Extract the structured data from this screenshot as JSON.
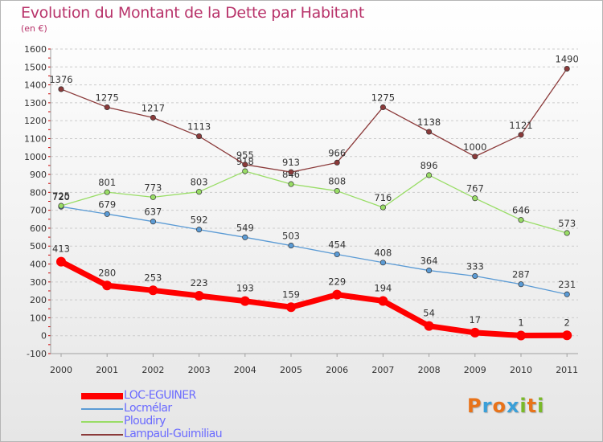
{
  "title": "Evolution du Montant de la Dette par Habitant",
  "subtitle": "(en €)",
  "logo_text": "Proxiti",
  "colors": {
    "title": "#b8336a",
    "axis": "#a0a0a0",
    "grid": "#cccccc",
    "logo": [
      "#e8731a",
      "#3a9fd8",
      "#e8731a",
      "#3a9fd8",
      "#7ab929",
      "#e8731a",
      "#7ab929"
    ]
  },
  "chart_data": {
    "type": "line",
    "title": "Evolution du Montant de la Dette par Habitant",
    "subtitle": "(en €)",
    "xlabel": "",
    "ylabel": "",
    "x": [
      "2000",
      "2001",
      "2002",
      "2003",
      "2004",
      "2005",
      "2006",
      "2007",
      "2008",
      "2009",
      "2010",
      "2011"
    ],
    "ylim": [
      -100,
      1600
    ],
    "yticks": [
      "-100",
      "0",
      "100",
      "200",
      "300",
      "400",
      "500",
      "600",
      "700",
      "800",
      "900",
      "1000",
      "1100",
      "1200",
      "1300",
      "1400",
      "1500",
      "1600"
    ],
    "grid": "horizontal dashed",
    "legend_position": "bottom-left",
    "series": [
      {
        "name": "LOC-EGUINER",
        "color": "#ff0000",
        "legend_text_color": "#6a6aff",
        "emphasis": "thick",
        "values": [
          413,
          280,
          253,
          223,
          193,
          159,
          229,
          194,
          54,
          17,
          1,
          2
        ],
        "labels": [
          "413",
          "280",
          "253",
          "223",
          "193",
          "159",
          "229",
          "194",
          "54",
          "17",
          "1",
          "2"
        ]
      },
      {
        "name": "Locmélar",
        "color": "#5b9bd5",
        "legend_text_color": "#6a6aff",
        "emphasis": "normal",
        "values": [
          720,
          679,
          637,
          592,
          549,
          503,
          454,
          408,
          364,
          333,
          287,
          231
        ],
        "labels": [
          "720",
          "679",
          "637",
          "592",
          "549",
          "503",
          "454",
          "408",
          "364",
          "333",
          "287",
          "231"
        ]
      },
      {
        "name": "Ploudiry",
        "color": "#99dd66",
        "legend_text_color": "#6a6aff",
        "emphasis": "normal",
        "values": [
          725,
          801,
          773,
          803,
          918,
          846,
          808,
          716,
          896,
          767,
          646,
          573
        ],
        "labels": [
          "725",
          "801",
          "773",
          "803",
          "918",
          "846",
          "808",
          "716",
          "896",
          "767",
          "646",
          "573"
        ]
      },
      {
        "name": "Lampaul-Guimiliau",
        "color": "#8b3a3a",
        "legend_text_color": "#6a6aff",
        "emphasis": "normal",
        "values": [
          1376,
          1275,
          1217,
          1113,
          955,
          913,
          966,
          1275,
          1138,
          1000,
          1121,
          1490
        ],
        "labels": [
          "1376",
          "1275",
          "1217",
          "1113",
          "955",
          "913",
          "966",
          "1275",
          "1138",
          "1000",
          "1121",
          "1490"
        ]
      }
    ]
  }
}
